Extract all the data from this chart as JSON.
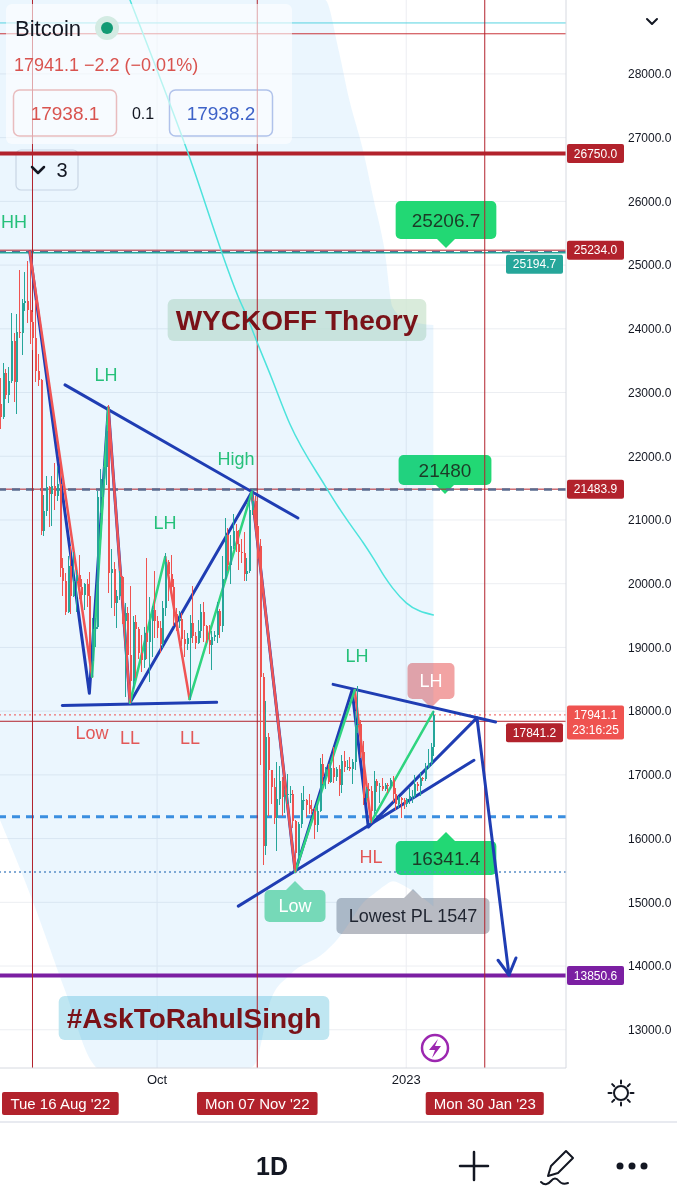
{
  "chart_data": {
    "type": "candlestick",
    "title": "Bitcoin",
    "subtitle": "17941.1 −2.2 (−0.01%)",
    "x": [
      "2022-08-04",
      "2022-08-05",
      "2022-08-06",
      "2022-08-07",
      "2022-08-08",
      "2022-08-09",
      "2022-08-10",
      "2022-08-11",
      "2022-08-12",
      "2022-08-13",
      "2022-08-14",
      "2022-08-15",
      "2022-08-16",
      "2022-08-17",
      "2022-08-18",
      "2022-08-19",
      "2022-08-20",
      "2022-08-21",
      "2022-08-22",
      "2022-08-23",
      "2022-08-24",
      "2022-08-25",
      "2022-08-26",
      "2022-08-27",
      "2022-08-28",
      "2022-08-29",
      "2022-08-30",
      "2022-08-31",
      "2022-09-01",
      "2022-09-02",
      "2022-09-03",
      "2022-09-04",
      "2022-09-05",
      "2022-09-06",
      "2022-09-07",
      "2022-09-08",
      "2022-09-09",
      "2022-09-10",
      "2022-09-11",
      "2022-09-12",
      "2022-09-13",
      "2022-09-14",
      "2022-09-15",
      "2022-09-16",
      "2022-09-17",
      "2022-09-18",
      "2022-09-19",
      "2022-09-20",
      "2022-09-21",
      "2022-09-22",
      "2022-09-23",
      "2022-09-24",
      "2022-09-25",
      "2022-09-26",
      "2022-09-27",
      "2022-09-28",
      "2022-09-29",
      "2022-09-30",
      "2022-10-01",
      "2022-10-02",
      "2022-10-03",
      "2022-10-04",
      "2022-10-05",
      "2022-10-06",
      "2022-10-07",
      "2022-10-08",
      "2022-10-09",
      "2022-10-10",
      "2022-10-11",
      "2022-10-12",
      "2022-10-13",
      "2022-10-14",
      "2022-10-15",
      "2022-10-16",
      "2022-10-17",
      "2022-10-18",
      "2022-10-19",
      "2022-10-20",
      "2022-10-21",
      "2022-10-22",
      "2022-10-23",
      "2022-10-24",
      "2022-10-25",
      "2022-10-26",
      "2022-10-27",
      "2022-10-28",
      "2022-10-29",
      "2022-10-30",
      "2022-10-31",
      "2022-11-01",
      "2022-11-02",
      "2022-11-03",
      "2022-11-04",
      "2022-11-05",
      "2022-11-06",
      "2022-11-07",
      "2022-11-08",
      "2022-11-09",
      "2022-11-10",
      "2022-11-11",
      "2022-11-12",
      "2022-11-13",
      "2022-11-14",
      "2022-11-15",
      "2022-11-16",
      "2022-11-17",
      "2022-11-18",
      "2022-11-19",
      "2022-11-20",
      "2022-11-21",
      "2022-11-22",
      "2022-11-23",
      "2022-11-24",
      "2022-11-25",
      "2022-11-26",
      "2022-11-27",
      "2022-11-28",
      "2022-11-29",
      "2022-11-30",
      "2022-12-01",
      "2022-12-02",
      "2022-12-03",
      "2022-12-04",
      "2022-12-05",
      "2022-12-06",
      "2022-12-07",
      "2022-12-08",
      "2022-12-09",
      "2022-12-10",
      "2022-12-11",
      "2022-12-12",
      "2022-12-13",
      "2022-12-14",
      "2022-12-15",
      "2022-12-16",
      "2022-12-17",
      "2022-12-18",
      "2022-12-19",
      "2022-12-20",
      "2022-12-21",
      "2022-12-22",
      "2022-12-23",
      "2022-12-24",
      "2022-12-25",
      "2022-12-26",
      "2022-12-27",
      "2022-12-28",
      "2022-12-29",
      "2022-12-30",
      "2022-12-31",
      "2023-01-01",
      "2023-01-02",
      "2023-01-03",
      "2023-01-04",
      "2023-01-05",
      "2023-01-06",
      "2023-01-07",
      "2023-01-08",
      "2023-01-09",
      "2023-01-10",
      "2023-01-11"
    ],
    "ohlc": [
      [
        22820,
        23220,
        22430,
        22620
      ],
      [
        22620,
        23460,
        22590,
        23310
      ],
      [
        23310,
        23360,
        22910,
        22960
      ],
      [
        22960,
        23400,
        22840,
        23180
      ],
      [
        23180,
        24240,
        23150,
        23810
      ],
      [
        23810,
        23930,
        22860,
        23160
      ],
      [
        23160,
        24230,
        22670,
        23950
      ],
      [
        23950,
        24920,
        23870,
        23930
      ],
      [
        23930,
        24460,
        23600,
        24400
      ],
      [
        24400,
        24890,
        24290,
        24440
      ],
      [
        24440,
        25050,
        24100,
        24300
      ],
      [
        24300,
        25210,
        23770,
        24100
      ],
      [
        24100,
        24250,
        23680,
        23850
      ],
      [
        23850,
        24450,
        23180,
        23340
      ],
      [
        23340,
        23600,
        23110,
        23190
      ],
      [
        23190,
        23200,
        20780,
        20830
      ],
      [
        20830,
        21380,
        20760,
        21140
      ],
      [
        21140,
        21690,
        21070,
        21520
      ],
      [
        21520,
        21520,
        20890,
        21400
      ],
      [
        21400,
        21680,
        20920,
        21530
      ],
      [
        21530,
        21880,
        21170,
        21370
      ],
      [
        21370,
        21820,
        21310,
        21570
      ],
      [
        21570,
        21880,
        20120,
        20250
      ],
      [
        20250,
        20400,
        19820,
        20040
      ],
      [
        20040,
        20160,
        19520,
        19550
      ],
      [
        19550,
        20420,
        19550,
        20280
      ],
      [
        20280,
        20580,
        19540,
        19810
      ],
      [
        19810,
        20490,
        19800,
        20050
      ],
      [
        20050,
        20200,
        19560,
        20130
      ],
      [
        20130,
        20450,
        19770,
        19950
      ],
      [
        19950,
        20060,
        19650,
        19830
      ],
      [
        19830,
        20000,
        19600,
        20000
      ],
      [
        20000,
        20060,
        19640,
        19800
      ],
      [
        19800,
        20180,
        18780,
        18790
      ],
      [
        18790,
        19460,
        18540,
        19290
      ],
      [
        19290,
        19460,
        19010,
        19320
      ],
      [
        19320,
        21440,
        19300,
        21360
      ],
      [
        21360,
        21800,
        21110,
        21650
      ],
      [
        21650,
        21840,
        21370,
        21830
      ],
      [
        21830,
        22490,
        21560,
        22400
      ],
      [
        22400,
        22800,
        19860,
        20170
      ],
      [
        20170,
        20540,
        19620,
        20230
      ],
      [
        20230,
        20330,
        19500,
        19700
      ],
      [
        19700,
        19890,
        19320,
        19800
      ],
      [
        19800,
        20190,
        19750,
        20110
      ],
      [
        20110,
        20110,
        19370,
        19420
      ],
      [
        19420,
        19690,
        18230,
        19540
      ],
      [
        19540,
        19630,
        18760,
        18880
      ],
      [
        18880,
        19960,
        18130,
        18480
      ],
      [
        18480,
        19490,
        18360,
        19400
      ],
      [
        19400,
        19500,
        18530,
        19290
      ],
      [
        19290,
        19320,
        18820,
        18920
      ],
      [
        18920,
        19180,
        18630,
        18800
      ],
      [
        18800,
        19320,
        18680,
        19220
      ],
      [
        19220,
        20390,
        18820,
        19080
      ],
      [
        19080,
        19790,
        18470,
        19410
      ],
      [
        19410,
        19650,
        18850,
        19590
      ],
      [
        19590,
        20190,
        19160,
        19420
      ],
      [
        19420,
        19480,
        19160,
        19310
      ],
      [
        19310,
        19400,
        18920,
        19060
      ],
      [
        19060,
        19720,
        19000,
        19620
      ],
      [
        19620,
        20470,
        19500,
        20340
      ],
      [
        20340,
        20360,
        19740,
        20160
      ],
      [
        20160,
        20450,
        19850,
        19950
      ],
      [
        19950,
        20060,
        19340,
        19530
      ],
      [
        19530,
        19610,
        19260,
        19420
      ],
      [
        19420,
        19560,
        19320,
        19440
      ],
      [
        19440,
        19530,
        19030,
        19130
      ],
      [
        19130,
        19260,
        18860,
        19060
      ],
      [
        19060,
        19220,
        18970,
        19150
      ],
      [
        19150,
        19500,
        18190,
        19380
      ],
      [
        19380,
        19950,
        19080,
        19180
      ],
      [
        19180,
        19230,
        18980,
        19070
      ],
      [
        19070,
        19420,
        19060,
        19260
      ],
      [
        19260,
        19680,
        19160,
        19550
      ],
      [
        19550,
        19710,
        19100,
        19330
      ],
      [
        19330,
        19350,
        19070,
        19120
      ],
      [
        19120,
        19350,
        18900,
        19040
      ],
      [
        19040,
        19250,
        18650,
        19160
      ],
      [
        19160,
        19250,
        19110,
        19200
      ],
      [
        19200,
        19700,
        19070,
        19570
      ],
      [
        19570,
        19600,
        19160,
        19330
      ],
      [
        19330,
        20420,
        19250,
        20080
      ],
      [
        20080,
        21020,
        20060,
        20770
      ],
      [
        20770,
        20860,
        20210,
        20290
      ],
      [
        20290,
        20750,
        20000,
        20590
      ],
      [
        20590,
        21080,
        20560,
        20820
      ],
      [
        20820,
        20930,
        20510,
        20630
      ],
      [
        20630,
        20840,
        20220,
        20490
      ],
      [
        20490,
        20700,
        20340,
        20480
      ],
      [
        20480,
        20800,
        20050,
        20150
      ],
      [
        20150,
        20390,
        20050,
        20200
      ],
      [
        20200,
        21300,
        20180,
        21150
      ],
      [
        21150,
        21480,
        21080,
        21300
      ],
      [
        21300,
        21370,
        20880,
        20900
      ],
      [
        20900,
        20920,
        20390,
        20590
      ],
      [
        20590,
        20700,
        17170,
        18540
      ],
      [
        18540,
        18590,
        15590,
        15880
      ],
      [
        15880,
        18150,
        15750,
        17590
      ],
      [
        17590,
        17650,
        16360,
        17070
      ],
      [
        17070,
        17070,
        16550,
        16810
      ],
      [
        16810,
        16950,
        16230,
        16330
      ],
      [
        16330,
        17190,
        15820,
        16620
      ],
      [
        16620,
        17130,
        16530,
        16900
      ],
      [
        16900,
        16960,
        16360,
        16660
      ],
      [
        16660,
        16750,
        16410,
        16690
      ],
      [
        16690,
        17010,
        16550,
        16700
      ],
      [
        16700,
        16820,
        16570,
        16700
      ],
      [
        16700,
        16750,
        16180,
        16280
      ],
      [
        16280,
        16290,
        15480,
        15780
      ],
      [
        15780,
        16260,
        15600,
        16230
      ],
      [
        16230,
        16700,
        16170,
        16600
      ],
      [
        16600,
        16810,
        16460,
        16600
      ],
      [
        16600,
        16610,
        16350,
        16520
      ],
      [
        16520,
        16690,
        16400,
        16460
      ],
      [
        16460,
        16600,
        16400,
        16440
      ],
      [
        16440,
        16480,
        16000,
        16220
      ],
      [
        16220,
        16530,
        16110,
        16440
      ],
      [
        16440,
        17250,
        16430,
        17170
      ],
      [
        17170,
        17320,
        16860,
        16980
      ],
      [
        16980,
        17110,
        16790,
        17090
      ],
      [
        17090,
        17160,
        16860,
        16890
      ],
      [
        16890,
        17200,
        16880,
        17110
      ],
      [
        17110,
        17430,
        16880,
        16970
      ],
      [
        16970,
        17110,
        16910,
        17090
      ],
      [
        17090,
        17140,
        16680,
        16840
      ],
      [
        16840,
        17300,
        16730,
        17220
      ],
      [
        17220,
        17360,
        17060,
        17130
      ],
      [
        17130,
        17230,
        17090,
        17130
      ],
      [
        17130,
        17270,
        17070,
        17090
      ],
      [
        17090,
        17240,
        16870,
        17200
      ],
      [
        17200,
        18000,
        17080,
        17780
      ],
      [
        17780,
        18390,
        17660,
        17800
      ],
      [
        17800,
        17850,
        17280,
        17360
      ],
      [
        17360,
        17530,
        16530,
        16630
      ],
      [
        16630,
        16800,
        16590,
        16780
      ],
      [
        16780,
        16860,
        16630,
        16740
      ],
      [
        16740,
        16820,
        16260,
        16440
      ],
      [
        16440,
        17060,
        16400,
        16900
      ],
      [
        16900,
        16920,
        16740,
        16820
      ],
      [
        16820,
        16870,
        16560,
        16820
      ],
      [
        16820,
        16950,
        16760,
        16780
      ],
      [
        16780,
        16860,
        16760,
        16840
      ],
      [
        16840,
        16870,
        16730,
        16830
      ],
      [
        16830,
        16950,
        16790,
        16920
      ],
      [
        16920,
        16970,
        16590,
        16700
      ],
      [
        16700,
        16790,
        16460,
        16550
      ],
      [
        16550,
        16660,
        16490,
        16630
      ],
      [
        16630,
        16640,
        16330,
        16600
      ],
      [
        16600,
        16630,
        16470,
        16540
      ],
      [
        16540,
        16630,
        16500,
        16620
      ],
      [
        16620,
        16790,
        16550,
        16670
      ],
      [
        16670,
        16760,
        16570,
        16670
      ],
      [
        16670,
        16990,
        16650,
        16850
      ],
      [
        16850,
        16880,
        16750,
        16830
      ],
      [
        16830,
        17040,
        16680,
        16950
      ],
      [
        16950,
        16960,
        16910,
        16940
      ],
      [
        16940,
        17180,
        16910,
        17120
      ],
      [
        17120,
        17400,
        17100,
        17180
      ],
      [
        17180,
        17490,
        17140,
        17440
      ],
      [
        17440,
        17990,
        17310,
        17940
      ]
    ],
    "xlim": [
      "2022-08-04",
      "2023-03-01"
    ],
    "xticks": [
      {
        "value": "2022-10-01",
        "label": "Oct"
      },
      {
        "value": "2023-01-01",
        "label": "2023"
      }
    ],
    "ylim": [
      12400,
      29160
    ],
    "yticks": [
      {
        "value": 13000,
        "label": "13000.0"
      },
      {
        "value": 14000,
        "label": "14000.0"
      },
      {
        "value": 15000,
        "label": "15000.0"
      },
      {
        "value": 16000,
        "label": "16000.0"
      },
      {
        "value": 17000,
        "label": "17000.0"
      },
      {
        "value": 18000,
        "label": "18000.0"
      },
      {
        "value": 19000,
        "label": "19000.0"
      },
      {
        "value": 20000,
        "label": "20000.0"
      },
      {
        "value": 21000,
        "label": "21000.0"
      },
      {
        "value": 22000,
        "label": "22000.0"
      },
      {
        "value": 23000,
        "label": "23000.0"
      },
      {
        "value": 24000,
        "label": "24000.0"
      },
      {
        "value": 25000,
        "label": "25000.0"
      },
      {
        "value": 26000,
        "label": "26000.0"
      },
      {
        "value": 27000,
        "label": "27000.0"
      },
      {
        "value": 28000,
        "label": "28000.0"
      }
    ],
    "grid": true,
    "series": [
      {
        "type": "line",
        "color": "#4de3dc",
        "x": [
          "2022-08-04",
          "2022-08-16",
          "2022-08-28",
          "2022-09-07",
          "2022-09-09",
          "2022-09-21",
          "2022-10-12",
          "2022-10-31",
          "2022-11-04",
          "2022-11-06",
          "2022-11-12",
          "2022-11-19",
          "2022-12-02",
          "2022-12-07",
          "2022-12-11",
          "2022-12-16",
          "2022-12-20",
          "2022-12-24",
          "2022-12-27",
          "2023-01-01",
          "2023-01-11"
        ],
        "values": [
          null,
          null,
          null,
          null,
          null,
          29160,
          26810,
          24500,
          24110,
          23890,
          23260,
          22510,
          21540,
          21200,
          20950,
          20650,
          20390,
          20110,
          19930,
          19700,
          19510
        ],
        "lower": [
          16290,
          15030,
          13620,
          12490,
          12400,
          12400,
          12400,
          12400,
          12400,
          12450,
          13470,
          13860,
          14220,
          14440,
          14680,
          14990,
          15130,
          15260,
          15330,
          15240,
          14940
        ],
        "upper": [
          29160,
          29160,
          29160,
          29160,
          29160,
          29160,
          29160,
          29160,
          29160,
          29160,
          29160,
          29160,
          29160,
          28380,
          27590,
          26810,
          26020,
          25240,
          24340,
          24140,
          24060
        ]
      },
      {
        "type": "line",
        "color": "#1f3db3",
        "x": [
          "2022-08-15",
          "2022-09-06",
          "2022-09-13",
          "2022-09-21",
          "2022-11-05",
          "2022-11-21",
          "2022-12-12",
          "2022-12-18",
          "2023-01-27"
        ],
        "values": [
          25210,
          18280,
          22760,
          18130,
          21440,
          15480,
          18330,
          16180,
          17890
        ]
      },
      {
        "type": "line",
        "color": "#1f3db3",
        "x": [
          "2022-08-28",
          "2022-11-22"
        ],
        "values": [
          23120,
          21030
        ]
      },
      {
        "type": "line",
        "color": "#1f3db3",
        "x": [
          "2022-08-27",
          "2022-10-23"
        ],
        "values": [
          18090,
          18140
        ]
      },
      {
        "type": "line",
        "color": "#1f3db3",
        "x": [
          "2022-12-05",
          "2023-02-03"
        ],
        "values": [
          18420,
          17830
        ]
      },
      {
        "type": "line",
        "color": "#1f3db3",
        "x": [
          "2022-10-31",
          "2023-01-26"
        ],
        "values": [
          14940,
          17230
        ]
      },
      {
        "type": "line",
        "color": "#f05454",
        "x": [
          "2022-08-15",
          "2022-09-07"
        ],
        "values": [
          25210,
          18540
        ]
      },
      {
        "type": "line",
        "color": "#f05454",
        "x": [
          "2022-09-13",
          "2022-09-21"
        ],
        "values": [
          22760,
          18130
        ]
      },
      {
        "type": "line",
        "color": "#f05454",
        "x": [
          "2022-10-04",
          "2022-10-13"
        ],
        "values": [
          20420,
          18190
        ]
      },
      {
        "type": "line",
        "color": "#f05454",
        "x": [
          "2022-11-05",
          "2022-11-21"
        ],
        "values": [
          21440,
          15480
        ]
      },
      {
        "type": "line",
        "color": "#f05454",
        "x": [
          "2022-12-13",
          "2022-12-19"
        ],
        "values": [
          18330,
          16260
        ]
      },
      {
        "type": "line",
        "color": "#2fd47f",
        "x": [
          "2022-09-07",
          "2022-09-13"
        ],
        "values": [
          18540,
          22760
        ]
      },
      {
        "type": "line",
        "color": "#2fd47f",
        "x": [
          "2022-09-21",
          "2022-10-04"
        ],
        "values": [
          18130,
          20420
        ]
      },
      {
        "type": "line",
        "color": "#2fd47f",
        "x": [
          "2022-10-13",
          "2022-11-05"
        ],
        "values": [
          18190,
          21440
        ]
      },
      {
        "type": "line",
        "color": "#2fd47f",
        "x": [
          "2022-11-21",
          "2022-12-13"
        ],
        "values": [
          15480,
          18330
        ]
      },
      {
        "type": "line",
        "color": "#2fd47f",
        "x": [
          "2022-12-19",
          "2023-01-11"
        ],
        "values": [
          16260,
          17990
        ]
      }
    ],
    "ref_lines": [
      {
        "axis": "y",
        "value": 28800,
        "color": "#56d3e0"
      },
      {
        "axis": "y",
        "value": 28630,
        "color": "#c9343a"
      },
      {
        "axis": "y",
        "value": 26750,
        "label": "26750.0",
        "color": "#b2222c"
      },
      {
        "axis": "y",
        "value": 25234,
        "label": "25234.0",
        "color": "#b2222c"
      },
      {
        "axis": "y",
        "value": 25206.7,
        "color": "#5a6b8f",
        "line_style": "dashed"
      },
      {
        "axis": "y",
        "value": 25194.7,
        "label": "25194.7",
        "color": "#26a69a"
      },
      {
        "axis": "y",
        "value": 21483.9,
        "label": "21483.9",
        "color": "#b2222c"
      },
      {
        "axis": "y",
        "value": 21480,
        "color": "#5a6b8f",
        "line_style": "dashed"
      },
      {
        "axis": "y",
        "value": 17941.1,
        "label": "17941.1\n23:16:25",
        "color": "#ef5350",
        "line_style": "dotted"
      },
      {
        "axis": "y",
        "value": 17841.2,
        "label": "17841.2",
        "color": "#b2222c"
      },
      {
        "axis": "y",
        "value": 16341.4,
        "color": "#3a8ee0",
        "line_style": "dashed"
      },
      {
        "axis": "y",
        "value": 15476,
        "color": "#5a8ec8",
        "line_style": "dotted"
      },
      {
        "axis": "y",
        "value": 13850.6,
        "label": "13850.6",
        "color": "#7b1fa2"
      },
      {
        "axis": "x",
        "value": "2022-08-16",
        "label": "Tue 16 Aug '22",
        "color": "#b2222c"
      },
      {
        "axis": "x",
        "value": "2022-11-07",
        "label": "Mon 07 Nov '22",
        "color": "#b2222c"
      },
      {
        "axis": "x",
        "value": "2023-01-30",
        "label": "Mon 30 Jan '23",
        "color": "#b2222c"
      }
    ],
    "annotations": [
      "17938.1",
      "0.1",
      "17938.2",
      "3",
      "WYCKOFF Theory",
      "#AskToRahulSingh",
      "1D",
      "HH",
      "LH",
      "High",
      "LH",
      "Low",
      "LL",
      "LL",
      "LH",
      "LH",
      "HL",
      "Low",
      "25206.7",
      "21480",
      "16341.4",
      "Lowest PL 1547"
    ]
  }
}
